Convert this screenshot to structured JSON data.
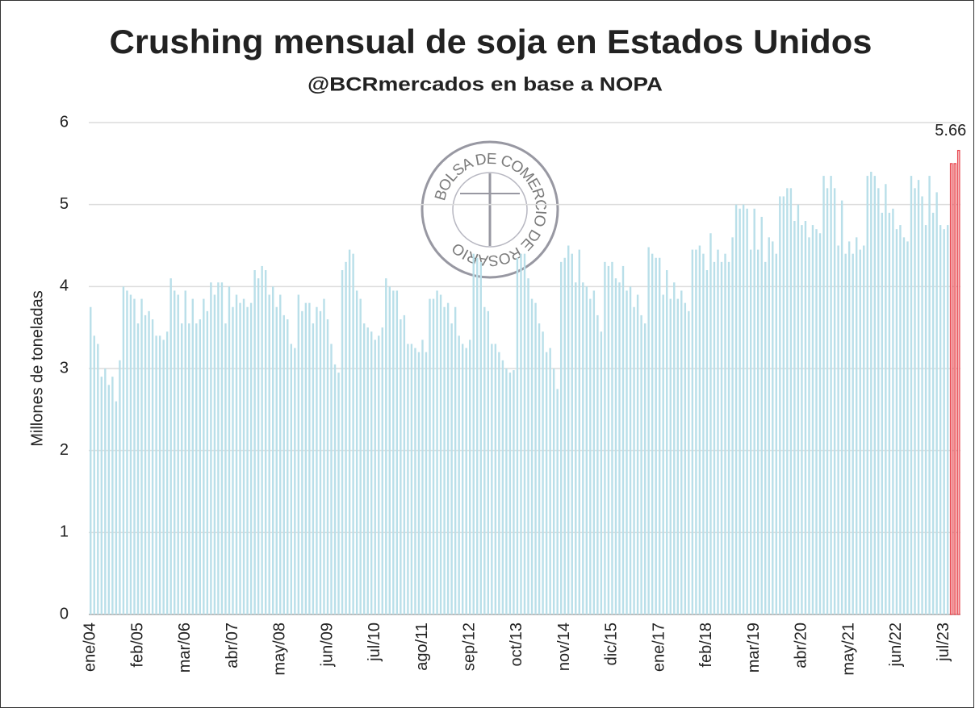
{
  "chart_data": {
    "type": "bar",
    "title": "Crushing mensual de soja en Estados Unidos",
    "subtitle": "@BCRmercados en base a NOPA",
    "y_label": "Millones de toneladas",
    "watermark": "BOLSA DE COMERCIO DE ROSARIO",
    "categories": [
      "ene/04",
      null,
      null,
      null,
      null,
      null,
      null,
      null,
      null,
      null,
      null,
      null,
      null,
      "feb/05",
      null,
      null,
      null,
      null,
      null,
      null,
      null,
      null,
      null,
      null,
      null,
      null,
      "mar/06",
      null,
      null,
      null,
      null,
      null,
      null,
      null,
      null,
      null,
      null,
      null,
      null,
      "abr/07",
      null,
      null,
      null,
      null,
      null,
      null,
      null,
      null,
      null,
      null,
      null,
      null,
      "may/08",
      null,
      null,
      null,
      null,
      null,
      null,
      null,
      null,
      null,
      null,
      null,
      null,
      "jun/09",
      null,
      null,
      null,
      null,
      null,
      null,
      null,
      null,
      null,
      null,
      null,
      null,
      "jul/10",
      null,
      null,
      null,
      null,
      null,
      null,
      null,
      null,
      null,
      null,
      null,
      null,
      "ago/11",
      null,
      null,
      null,
      null,
      null,
      null,
      null,
      null,
      null,
      null,
      null,
      null,
      "sep/12",
      null,
      null,
      null,
      null,
      null,
      null,
      null,
      null,
      null,
      null,
      null,
      null,
      "oct/13",
      null,
      null,
      null,
      null,
      null,
      null,
      null,
      null,
      null,
      null,
      null,
      null,
      "nov/14",
      null,
      null,
      null,
      null,
      null,
      null,
      null,
      null,
      null,
      null,
      null,
      null,
      "dic/15",
      null,
      null,
      null,
      null,
      null,
      null,
      null,
      null,
      null,
      null,
      null,
      null,
      "ene/17",
      null,
      null,
      null,
      null,
      null,
      null,
      null,
      null,
      null,
      null,
      null,
      null,
      "feb/18",
      null,
      null,
      null,
      null,
      null,
      null,
      null,
      null,
      null,
      null,
      null,
      null,
      "mar/19",
      null,
      null,
      null,
      null,
      null,
      null,
      null,
      null,
      null,
      null,
      null,
      null,
      "abr/20",
      null,
      null,
      null,
      null,
      null,
      null,
      null,
      null,
      null,
      null,
      null,
      null,
      "may/21",
      null,
      null,
      null,
      null,
      null,
      null,
      null,
      null,
      null,
      null,
      null,
      null,
      "jun/22",
      null,
      null,
      null,
      null,
      null,
      null,
      null,
      null,
      null,
      null,
      null,
      null,
      "jul/23",
      null,
      null,
      null,
      null
    ],
    "values": [
      3.75,
      3.4,
      3.3,
      2.9,
      3.0,
      2.8,
      2.9,
      2.6,
      3.1,
      4.0,
      3.95,
      3.9,
      3.85,
      3.55,
      3.85,
      3.65,
      3.7,
      3.6,
      3.4,
      3.4,
      3.35,
      3.45,
      4.1,
      3.95,
      3.9,
      3.55,
      3.95,
      3.55,
      3.85,
      3.55,
      3.6,
      3.85,
      3.7,
      4.05,
      3.9,
      4.05,
      4.05,
      3.55,
      4.0,
      3.75,
      3.9,
      3.8,
      3.85,
      3.75,
      3.8,
      4.2,
      4.1,
      4.25,
      4.2,
      3.9,
      4.0,
      3.75,
      3.9,
      3.65,
      3.6,
      3.3,
      3.25,
      3.9,
      3.7,
      3.8,
      3.8,
      3.55,
      3.75,
      3.7,
      3.85,
      3.6,
      3.3,
      3.05,
      2.95,
      4.2,
      4.3,
      4.45,
      4.4,
      3.95,
      3.85,
      3.55,
      3.5,
      3.45,
      3.35,
      3.4,
      3.5,
      4.1,
      4.0,
      3.95,
      3.95,
      3.6,
      3.65,
      3.3,
      3.3,
      3.25,
      3.2,
      3.35,
      3.2,
      3.85,
      3.85,
      3.95,
      3.9,
      3.75,
      3.8,
      3.55,
      3.75,
      3.4,
      3.3,
      3.25,
      3.35,
      4.4,
      4.35,
      4.3,
      3.75,
      3.7,
      3.3,
      3.3,
      3.2,
      3.1,
      3.0,
      2.95,
      2.98,
      4.35,
      4.4,
      4.4,
      4.1,
      3.85,
      3.8,
      3.55,
      3.45,
      3.2,
      3.25,
      3.0,
      2.75,
      4.3,
      4.35,
      4.5,
      4.4,
      4.05,
      4.45,
      4.05,
      4.0,
      3.85,
      3.95,
      3.65,
      3.45,
      4.3,
      4.25,
      4.3,
      4.1,
      4.05,
      4.25,
      3.95,
      4.0,
      3.75,
      3.9,
      3.65,
      3.55,
      4.48,
      4.4,
      4.35,
      4.35,
      3.9,
      4.2,
      3.85,
      4.05,
      3.85,
      3.95,
      3.8,
      3.7,
      4.45,
      4.45,
      4.5,
      4.4,
      4.2,
      4.65,
      4.3,
      4.45,
      4.3,
      4.4,
      4.3,
      4.6,
      5.0,
      4.95,
      5.0,
      4.95,
      4.45,
      4.95,
      4.45,
      4.85,
      4.3,
      4.6,
      4.55,
      4.4,
      5.1,
      5.1,
      5.2,
      5.2,
      4.8,
      5.0,
      4.75,
      4.8,
      4.6,
      4.75,
      4.7,
      4.65,
      5.35,
      5.2,
      5.35,
      5.2,
      4.5,
      5.05,
      4.4,
      4.55,
      4.4,
      4.6,
      4.45,
      4.5,
      5.35,
      5.4,
      5.35,
      5.2,
      4.9,
      5.25,
      4.9,
      4.95,
      4.7,
      4.75,
      4.6,
      4.55,
      5.35,
      5.2,
      5.3,
      5.1,
      4.75,
      5.35,
      4.9,
      5.15,
      4.75,
      4.7,
      4.75,
      5.5,
      5.5,
      5.66
    ],
    "color": "#b9dfe9",
    "highlight_color": "#e8474f",
    "highlight_indices": [
      236,
      237,
      238
    ],
    "labeled_indices": [
      238
    ],
    "ylim": [
      0,
      6
    ],
    "yticks": [
      0,
      1,
      2,
      3,
      4,
      5,
      6
    ],
    "grid": true
  }
}
